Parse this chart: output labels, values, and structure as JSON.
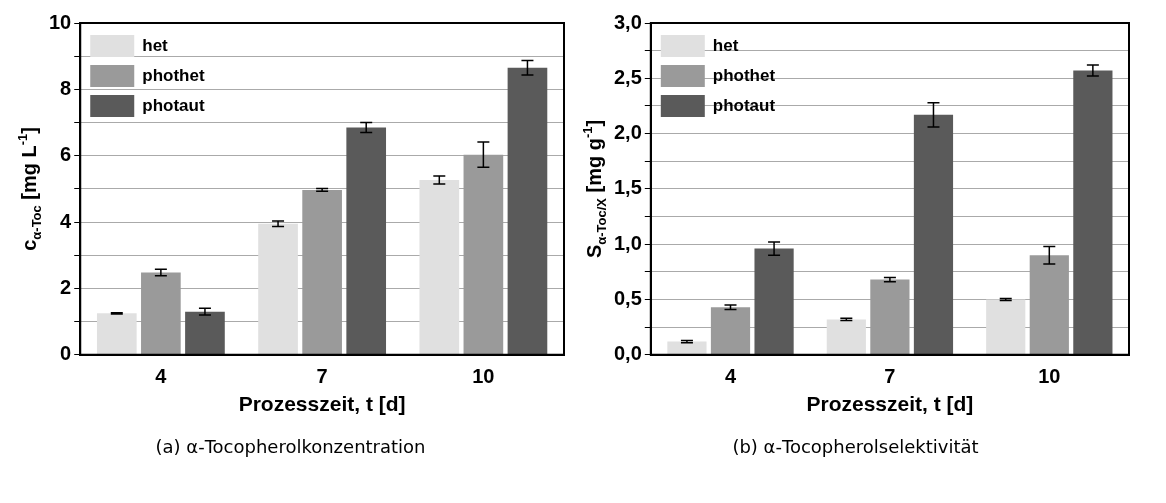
{
  "chart_data": [
    {
      "type": "bar",
      "xlabel": "Prozesszeit, t [d]",
      "ylabel": "c$_{α-Toc}$ [mg L$^{-1}$]",
      "categories": [
        "4",
        "7",
        "10"
      ],
      "series": [
        {
          "name": "het",
          "color": "#e0e0e0",
          "values": [
            1.25,
            3.95,
            5.27
          ],
          "errors": [
            0.02,
            0.08,
            0.12
          ]
        },
        {
          "name": "phothet",
          "color": "#9a9a9a",
          "values": [
            2.48,
            4.97,
            6.03
          ],
          "errors": [
            0.1,
            0.04,
            0.38
          ]
        },
        {
          "name": "photaut",
          "color": "#5a5a5a",
          "values": [
            1.3,
            6.85,
            8.65
          ],
          "errors": [
            0.1,
            0.15,
            0.22
          ]
        }
      ],
      "ylim": [
        0,
        10
      ],
      "yticks": [
        0,
        {
          "value": 1,
          "label": null
        },
        2,
        {
          "value": 3,
          "label": null
        },
        4,
        {
          "value": 5,
          "label": null
        },
        6,
        {
          "value": 7,
          "label": null
        },
        8,
        {
          "value": 9,
          "label": null
        },
        10
      ],
      "grid": "y",
      "legend": "top left",
      "annotations": [
        "(a) α-Tocopherolkonzentration"
      ]
    },
    {
      "type": "bar",
      "xlabel": "Prozesszeit, t [d]",
      "ylabel": "S$_{α-Toc/X}$ [mg g$^{-1}$]",
      "categories": [
        "4",
        "7",
        "10"
      ],
      "series": [
        {
          "name": "het",
          "color": "#e0e0e0",
          "values": [
            0.12,
            0.32,
            0.5
          ],
          "errors": [
            0.01,
            0.01,
            0.01
          ]
        },
        {
          "name": "phothet",
          "color": "#9a9a9a",
          "values": [
            0.43,
            0.68,
            0.9
          ],
          "errors": [
            0.02,
            0.02,
            0.08
          ]
        },
        {
          "name": "photaut",
          "color": "#5a5a5a",
          "values": [
            0.96,
            2.17,
            2.57
          ],
          "errors": [
            0.06,
            0.11,
            0.05
          ]
        }
      ],
      "ylim": [
        0,
        3
      ],
      "yticks": [
        {
          "value": 0,
          "label": "0,0"
        },
        {
          "value": 0.25,
          "label": null
        },
        {
          "value": 0.5,
          "label": "0,5"
        },
        {
          "value": 0.75,
          "label": null
        },
        {
          "value": 1,
          "label": "1,0"
        },
        {
          "value": 1.25,
          "label": null
        },
        {
          "value": 1.5,
          "label": "1,5"
        },
        {
          "value": 1.75,
          "label": null
        },
        {
          "value": 2,
          "label": "2,0"
        },
        {
          "value": 2.25,
          "label": null
        },
        {
          "value": 2.5,
          "label": "2,5"
        },
        {
          "value": 2.75,
          "label": null
        },
        {
          "value": 3,
          "label": "3,0"
        }
      ],
      "grid": "y",
      "legend": "top left",
      "annotations": [
        "(b) α-Tocopherolselektivität"
      ]
    }
  ]
}
